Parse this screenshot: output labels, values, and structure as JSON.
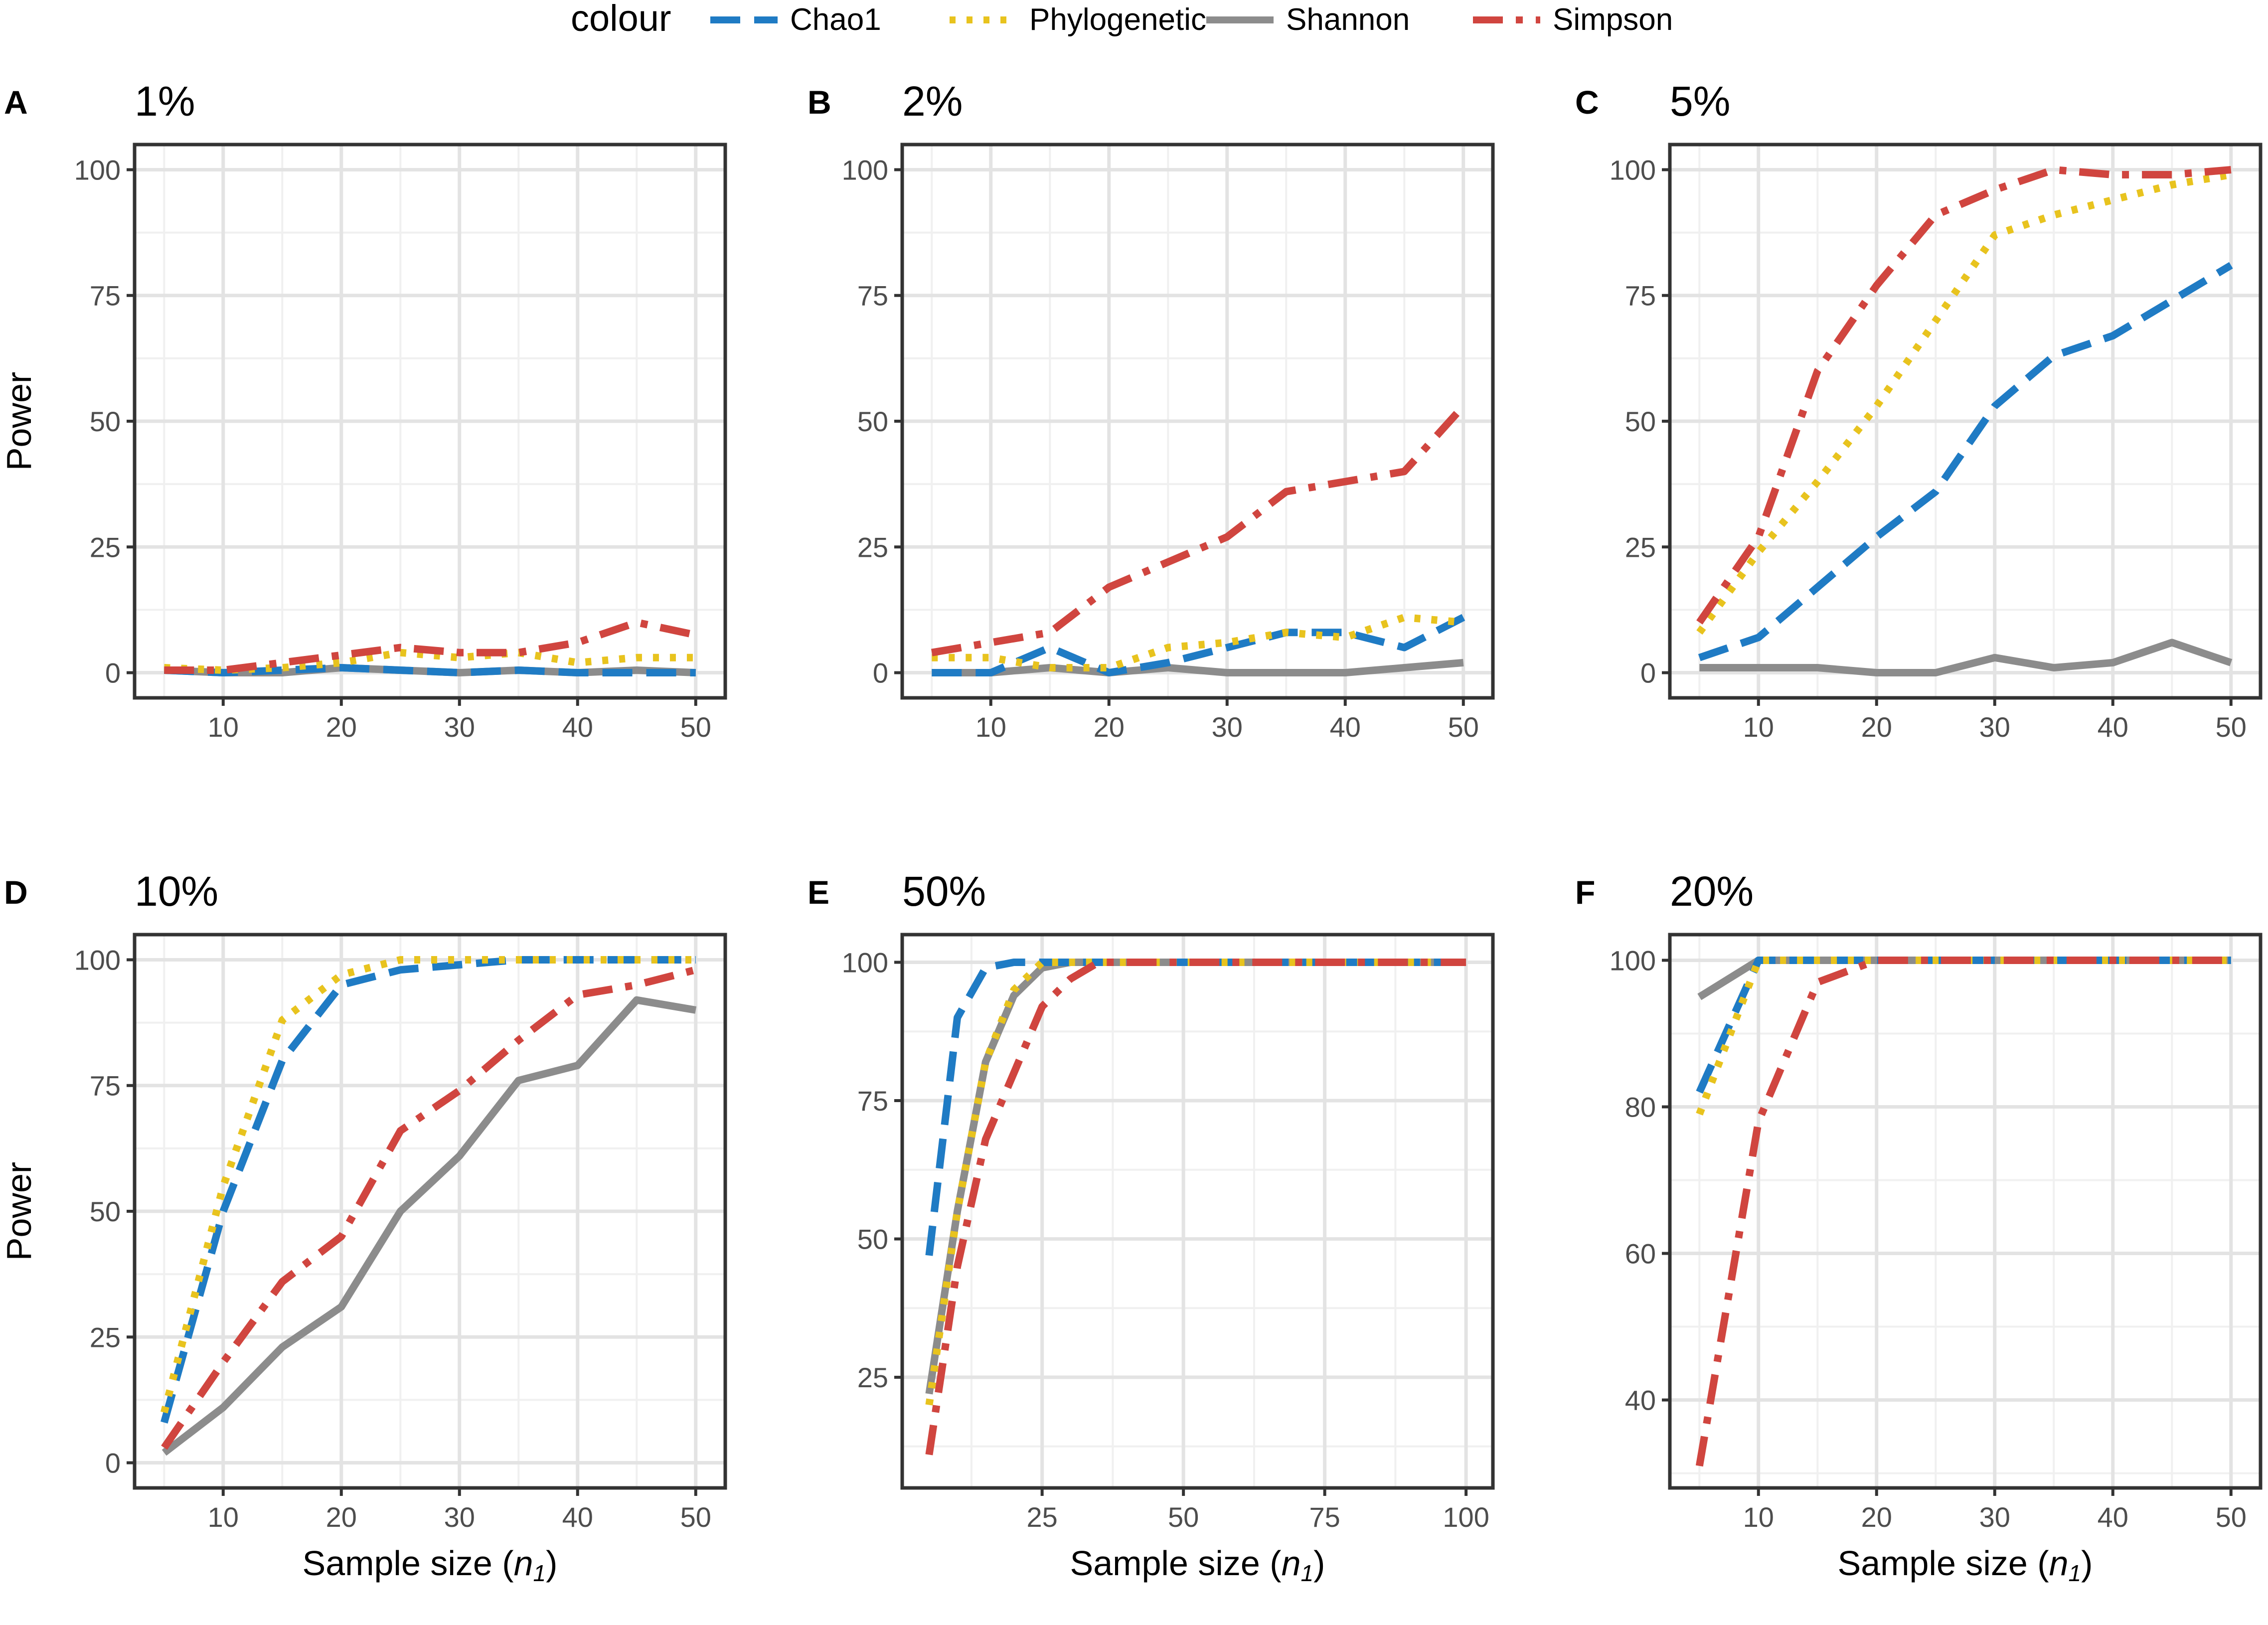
{
  "chart_data": {
    "type": "line",
    "legend": {
      "title": "colour",
      "position": "top",
      "entries": [
        {
          "name": "Chao1",
          "color": "#1f7bc4",
          "dash": "dashed"
        },
        {
          "name": "Phylogenetic",
          "color": "#e8c31e",
          "dash": "dotted"
        },
        {
          "name": "Shannon",
          "color": "#8c8c8c",
          "dash": "solid"
        },
        {
          "name": "Simpson",
          "color": "#d0453f",
          "dash": "dashdot"
        }
      ]
    },
    "panels": [
      {
        "letter": "A",
        "title": "1%",
        "ylabel": "Power",
        "xlabel": "",
        "xlim": [
          2.5,
          52.5
        ],
        "ylim": [
          -5,
          105
        ],
        "xticks": [
          10,
          20,
          30,
          40,
          50
        ],
        "yticks": [
          0,
          25,
          50,
          75,
          100
        ],
        "x": [
          5,
          10,
          15,
          20,
          25,
          30,
          35,
          40,
          45,
          50
        ],
        "series": [
          {
            "name": "Chao1",
            "values": [
              0.5,
              0,
              0.5,
              1,
              0.5,
              0,
              0.5,
              0,
              0,
              0
            ]
          },
          {
            "name": "Phylogenetic",
            "values": [
              1,
              0.5,
              1,
              2,
              4,
              3,
              4,
              2,
              3,
              3
            ]
          },
          {
            "name": "Shannon",
            "values": [
              0.5,
              0,
              0,
              1,
              0.5,
              0,
              0.5,
              0,
              0.5,
              0
            ]
          },
          {
            "name": "Simpson",
            "values": [
              0.5,
              0.5,
              2,
              3.5,
              5,
              4,
              4,
              6,
              10,
              7.5
            ]
          }
        ]
      },
      {
        "letter": "B",
        "title": "2%",
        "ylabel": "",
        "xlabel": "",
        "xlim": [
          2.5,
          52.5
        ],
        "ylim": [
          -5,
          105
        ],
        "xticks": [
          10,
          20,
          30,
          40,
          50
        ],
        "yticks": [
          0,
          25,
          50,
          75,
          100
        ],
        "x": [
          5,
          10,
          15,
          20,
          25,
          30,
          35,
          40,
          45,
          50
        ],
        "series": [
          {
            "name": "Chao1",
            "values": [
              0,
              0,
              5,
              0,
              2,
              5,
              8,
              8,
              5,
              11
            ]
          },
          {
            "name": "Phylogenetic",
            "values": [
              3,
              3,
              1,
              1,
              5,
              6,
              8,
              7,
              11,
              10
            ]
          },
          {
            "name": "Shannon",
            "values": [
              0,
              0,
              1,
              0,
              1,
              0,
              0,
              0,
              1,
              2
            ]
          },
          {
            "name": "Simpson",
            "values": [
              4,
              6,
              8,
              17,
              22,
              27,
              36,
              38,
              40,
              53
            ]
          }
        ]
      },
      {
        "letter": "C",
        "title": "5%",
        "ylabel": "",
        "xlabel": "",
        "xlim": [
          2.5,
          52.5
        ],
        "ylim": [
          -5,
          105
        ],
        "xticks": [
          10,
          20,
          30,
          40,
          50
        ],
        "yticks": [
          0,
          25,
          50,
          75,
          100
        ],
        "x": [
          5,
          10,
          15,
          20,
          25,
          30,
          35,
          40,
          45,
          50
        ],
        "series": [
          {
            "name": "Chao1",
            "values": [
              3,
              7,
              17,
              27,
              36,
              53,
              63,
              67,
              74,
              81
            ]
          },
          {
            "name": "Phylogenetic",
            "values": [
              8,
              24,
              38,
              53,
              70,
              87,
              91,
              94,
              97,
              99
            ]
          },
          {
            "name": "Shannon",
            "values": [
              1,
              1,
              1,
              0,
              0,
              3,
              1,
              2,
              6,
              2
            ]
          },
          {
            "name": "Simpson",
            "values": [
              10,
              27,
              60,
              77,
              91,
              96,
              100,
              99,
              99,
              100
            ]
          }
        ]
      },
      {
        "letter": "D",
        "title": "10%",
        "ylabel": "Power",
        "xlabel": "Sample size (",
        "xlabel_var": "n",
        "xlabel_sub": "1",
        "xlabel_end": ")",
        "xlim": [
          2.5,
          52.5
        ],
        "ylim": [
          -5,
          105
        ],
        "xticks": [
          10,
          20,
          30,
          40,
          50
        ],
        "yticks": [
          0,
          25,
          50,
          75,
          100
        ],
        "x": [
          5,
          10,
          15,
          20,
          25,
          30,
          35,
          40,
          45,
          50
        ],
        "series": [
          {
            "name": "Chao1",
            "values": [
              8,
              50,
              80,
              95,
              98,
              99,
              100,
              100,
              100,
              100
            ]
          },
          {
            "name": "Phylogenetic",
            "values": [
              10,
              55,
              88,
              97,
              100,
              100,
              100,
              100,
              100,
              100
            ]
          },
          {
            "name": "Shannon",
            "values": [
              2,
              11,
              23,
              31,
              50,
              61,
              76,
              79,
              92,
              90
            ]
          },
          {
            "name": "Simpson",
            "values": [
              3,
              20,
              36,
              45,
              66,
              74,
              84,
              93,
              95,
              98
            ]
          }
        ]
      },
      {
        "letter": "E",
        "title": "50%",
        "ylabel": "",
        "xlabel": "Sample size (",
        "xlabel_var": "n",
        "xlabel_sub": "1",
        "xlabel_end": ")",
        "xlim": [
          0.25,
          104.75
        ],
        "ylim": [
          5,
          105
        ],
        "xticks": [
          25,
          50,
          75,
          100
        ],
        "yticks": [
          25,
          50,
          75,
          100
        ],
        "x": [
          5,
          10,
          15,
          20,
          25,
          30,
          35,
          40,
          50,
          60,
          70,
          80,
          90,
          100
        ],
        "series": [
          {
            "name": "Chao1",
            "values": [
              47,
              90,
              99,
              100,
              100,
              100,
              100,
              100,
              100,
              100,
              100,
              100,
              100,
              100
            ]
          },
          {
            "name": "Phylogenetic",
            "values": [
              20,
              55,
              82,
              95,
              100,
              100,
              100,
              100,
              100,
              100,
              100,
              100,
              100,
              100
            ]
          },
          {
            "name": "Shannon",
            "values": [
              22,
              55,
              82,
              94,
              99,
              100,
              100,
              100,
              100,
              100,
              100,
              100,
              100,
              100
            ]
          },
          {
            "name": "Simpson",
            "values": [
              11,
              45,
              68,
              80,
              92,
              97,
              100,
              100,
              100,
              100,
              100,
              100,
              100,
              100
            ]
          }
        ]
      },
      {
        "letter": "F",
        "title": "20%",
        "ylabel": "",
        "xlabel": "Sample size (",
        "xlabel_var": "n",
        "xlabel_sub": "1",
        "xlabel_end": ")",
        "xlim": [
          2.5,
          52.5
        ],
        "ylim": [
          28,
          103.5
        ],
        "xticks": [
          10,
          20,
          30,
          40,
          50
        ],
        "yticks": [
          40,
          60,
          80,
          100
        ],
        "x": [
          5,
          10,
          15,
          20,
          25,
          30,
          35,
          40,
          45,
          50
        ],
        "series": [
          {
            "name": "Chao1",
            "values": [
              82,
              100,
              100,
              100,
              100,
              100,
              100,
              100,
              100,
              100
            ]
          },
          {
            "name": "Phylogenetic",
            "values": [
              79,
              100,
              100,
              100,
              100,
              100,
              100,
              100,
              100,
              100
            ]
          },
          {
            "name": "Shannon",
            "values": [
              95,
              100,
              100,
              100,
              100,
              100,
              100,
              100,
              100,
              100
            ]
          },
          {
            "name": "Simpson",
            "values": [
              31,
              78,
              97,
              100,
              100,
              100,
              100,
              100,
              100,
              100
            ]
          }
        ]
      }
    ]
  }
}
